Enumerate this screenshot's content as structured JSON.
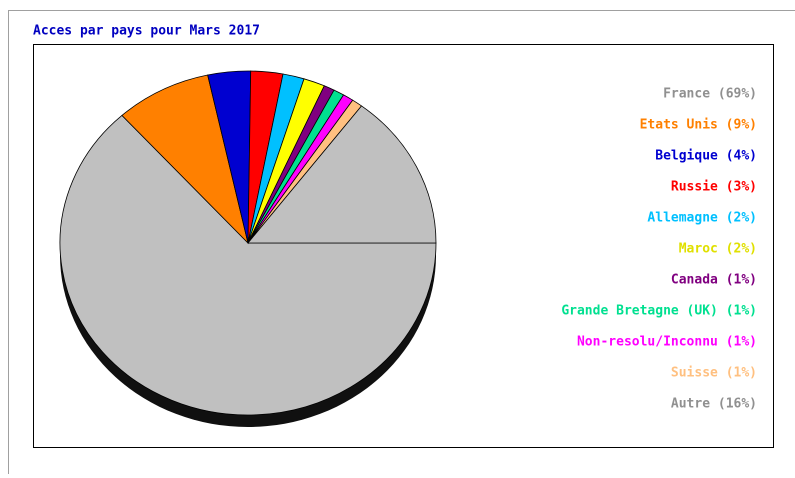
{
  "chart_data": {
    "type": "pie",
    "title": "Acces par pays pour Mars 2017",
    "categories": [
      "France (69%)",
      "Etats Unis (9%)",
      "Belgique (4%)",
      "Russie (3%)",
      "Allemagne (2%)",
      "Maroc (2%)",
      "Canada (1%)",
      "Grande Bretagne (UK) (1%)",
      "Non-resolu/Inconnu (1%)",
      "Suisse (1%)",
      "Autre (16%)"
    ],
    "values": [
      69,
      9,
      4,
      3,
      2,
      2,
      1,
      1,
      1,
      1,
      16
    ],
    "colors": [
      "#c0c0c0",
      "#ff8000",
      "#0000d0",
      "#ff0000",
      "#00c0ff",
      "#ffff00",
      "#800080",
      "#00e090",
      "#ff00ff",
      "#ffc080",
      "#c0c0c0"
    ],
    "legend": "right"
  }
}
